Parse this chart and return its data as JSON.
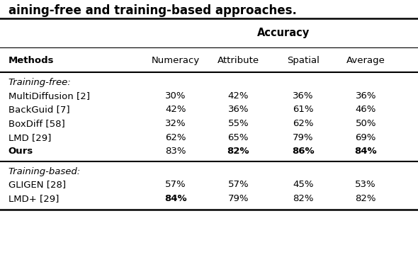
{
  "title_text": "aining-free and training-based approaches.",
  "header_group": "Accuracy",
  "section1_label": "Training-free:",
  "section2_label": "Training-based:",
  "rows": [
    {
      "method": "MultiDiffusion [2]",
      "numeracy": "30%",
      "attribute": "42%",
      "spatial": "36%",
      "average": "36%",
      "bold_method": false,
      "bold_numeracy": false,
      "bold_attribute": false,
      "bold_spatial": false,
      "bold_average": false
    },
    {
      "method": "BackGuid [7]",
      "numeracy": "42%",
      "attribute": "36%",
      "spatial": "61%",
      "average": "46%",
      "bold_method": false,
      "bold_numeracy": false,
      "bold_attribute": false,
      "bold_spatial": false,
      "bold_average": false
    },
    {
      "method": "BoxDiff [58]",
      "numeracy": "32%",
      "attribute": "55%",
      "spatial": "62%",
      "average": "50%",
      "bold_method": false,
      "bold_numeracy": false,
      "bold_attribute": false,
      "bold_spatial": false,
      "bold_average": false
    },
    {
      "method": "LMD [29]",
      "numeracy": "62%",
      "attribute": "65%",
      "spatial": "79%",
      "average": "69%",
      "bold_method": false,
      "bold_numeracy": false,
      "bold_attribute": false,
      "bold_spatial": false,
      "bold_average": false
    },
    {
      "method": "Ours",
      "numeracy": "83%",
      "attribute": "82%",
      "spatial": "86%",
      "average": "84%",
      "bold_method": true,
      "bold_numeracy": false,
      "bold_attribute": true,
      "bold_spatial": true,
      "bold_average": true
    }
  ],
  "rows2": [
    {
      "method": "GLIGEN [28]",
      "numeracy": "57%",
      "attribute": "57%",
      "spatial": "45%",
      "average": "53%",
      "bold_method": false,
      "bold_numeracy": false,
      "bold_attribute": false,
      "bold_spatial": false,
      "bold_average": false
    },
    {
      "method": "LMD+ [29]",
      "numeracy": "84%",
      "attribute": "79%",
      "spatial": "82%",
      "average": "82%",
      "bold_method": false,
      "bold_numeracy": true,
      "bold_attribute": false,
      "bold_spatial": false,
      "bold_average": false
    }
  ],
  "col_x": {
    "Methods": 0.02,
    "Numeracy": 0.42,
    "Attribute": 0.57,
    "Spatial": 0.725,
    "Average": 0.875
  },
  "bg_color": "#ffffff",
  "text_color": "#000000",
  "font_size": 9.5,
  "header_font_size": 9.5
}
